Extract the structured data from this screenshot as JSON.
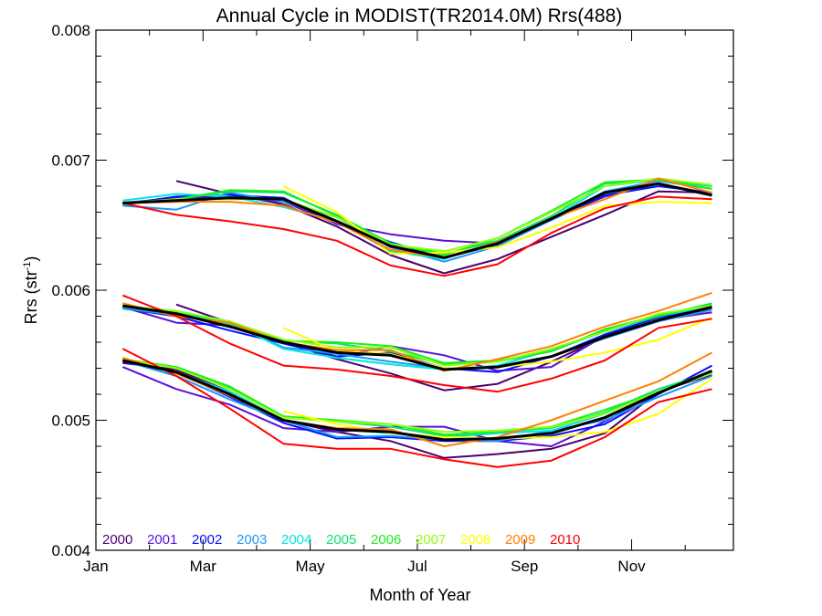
{
  "chart_data": {
    "type": "line",
    "title": "Annual Cycle in MODIST(TR2014.0M) Rrs(488)",
    "xlabel": "Month of Year",
    "ylabel_main": "Rrs (str",
    "ylabel_sup": "-1",
    "ylabel_close": ")",
    "xlim": [
      1,
      12.9
    ],
    "ylim": [
      0.004,
      0.008
    ],
    "x_ticks": [
      {
        "value": 1,
        "label": "Jan"
      },
      {
        "value": 3,
        "label": "Mar"
      },
      {
        "value": 5,
        "label": "May"
      },
      {
        "value": 7,
        "label": "Jul"
      },
      {
        "value": 9,
        "label": "Sep"
      },
      {
        "value": 11,
        "label": "Nov"
      }
    ],
    "y_ticks": [
      {
        "value": 0.004,
        "label": "0.004"
      },
      {
        "value": 0.005,
        "label": "0.005"
      },
      {
        "value": 0.006,
        "label": "0.006"
      },
      {
        "value": 0.007,
        "label": "0.007"
      },
      {
        "value": 0.008,
        "label": "0.008"
      }
    ],
    "x_months": [
      1.5,
      2.5,
      3.5,
      4.5,
      5.5,
      6.5,
      7.5,
      8.5,
      9.5,
      10.5,
      11.5,
      12.5
    ],
    "mean_color": "#000000",
    "groups": [
      {
        "series": [
          {
            "name": "2000",
            "color": "#4b0070",
            "values": [
              null,
              0.00684,
              0.00674,
              0.00666,
              0.00649,
              0.00627,
              0.00613,
              0.00624,
              0.00641,
              0.00658,
              0.00676,
              0.00675
            ]
          },
          {
            "name": "2001",
            "color": "#5a10d8",
            "values": [
              0.00667,
              0.00671,
              0.00672,
              0.00668,
              0.00651,
              0.00643,
              0.00638,
              0.00636,
              0.00655,
              0.00672,
              0.00682,
              0.00674
            ]
          },
          {
            "name": "2002",
            "color": "#0010ff",
            "values": [
              0.00666,
              0.00672,
              0.00673,
              0.00671,
              0.00651,
              0.00637,
              0.00625,
              0.00635,
              0.00654,
              0.00673,
              0.0068,
              0.00675
            ]
          },
          {
            "name": "2003",
            "color": "#1a9af0",
            "values": [
              0.00665,
              0.00662,
              0.00675,
              0.00668,
              0.00656,
              0.00633,
              0.00622,
              0.00634,
              0.00654,
              0.00676,
              0.00684,
              0.00678
            ]
          },
          {
            "name": "2004",
            "color": "#00e5e5",
            "values": [
              0.00669,
              0.00674,
              0.00672,
              0.00664,
              0.00653,
              0.0063,
              0.00624,
              0.00638,
              0.00655,
              0.0068,
              0.00685,
              0.00678
            ]
          },
          {
            "name": "2005",
            "color": "#10e070",
            "values": [
              0.00666,
              0.0067,
              0.00676,
              0.00675,
              0.00658,
              0.00636,
              0.00628,
              0.00638,
              0.00657,
              0.00682,
              0.00685,
              0.0068
            ]
          },
          {
            "name": "2006",
            "color": "#18f018",
            "values": [
              0.00666,
              0.0067,
              0.00677,
              0.00676,
              0.00657,
              0.00636,
              0.00627,
              0.0064,
              0.00661,
              0.00683,
              0.00685,
              0.00678
            ]
          },
          {
            "name": "2007",
            "color": "#90ff10",
            "values": [
              0.00667,
              0.0067,
              0.0067,
              0.0067,
              0.00656,
              0.00635,
              0.0063,
              0.0064,
              0.0066,
              0.0068,
              0.00686,
              0.00681
            ]
          },
          {
            "name": "2008",
            "color": "#ffff00",
            "values": [
              null,
              null,
              null,
              0.0068,
              0.0066,
              0.00628,
              0.00629,
              0.00633,
              0.00648,
              0.00665,
              0.00668,
              0.00667
            ]
          },
          {
            "name": "2009",
            "color": "#ff8000",
            "values": [
              0.00667,
              0.00668,
              0.00668,
              0.00665,
              0.00652,
              0.00631,
              0.00625,
              0.00637,
              0.00655,
              0.0067,
              0.00686,
              0.00675
            ]
          },
          {
            "name": "2010",
            "color": "#ff0000",
            "values": [
              0.00667,
              0.00658,
              0.00653,
              0.00647,
              0.00638,
              0.00619,
              0.00611,
              0.0062,
              0.00644,
              0.00663,
              0.00672,
              0.0067
            ]
          }
        ],
        "mean": [
          0.00667,
          0.00669,
          0.00671,
          0.0067,
          0.00653,
          0.00634,
          0.00625,
          0.00636,
          0.00655,
          0.00675,
          0.00682,
          0.00673
        ]
      },
      {
        "series": [
          {
            "name": "2000",
            "color": "#4b0070",
            "values": [
              null,
              0.00589,
              0.00575,
              0.0056,
              0.00547,
              0.00536,
              0.00523,
              0.00528,
              0.00545,
              0.00564,
              0.0058,
              0.00585
            ]
          },
          {
            "name": "2001",
            "color": "#5a10d8",
            "values": [
              0.00587,
              0.00575,
              0.00573,
              0.0056,
              0.00549,
              0.00557,
              0.0055,
              0.00538,
              0.00541,
              0.00565,
              0.00577,
              0.00583
            ]
          },
          {
            "name": "2002",
            "color": "#0010ff",
            "values": [
              0.00586,
              0.0058,
              0.00569,
              0.00559,
              0.00549,
              0.00552,
              0.0054,
              0.00537,
              0.00549,
              0.00566,
              0.00579,
              0.00587
            ]
          },
          {
            "name": "2003",
            "color": "#1a9af0",
            "values": [
              0.00586,
              0.00581,
              0.00574,
              0.00556,
              0.00551,
              0.00545,
              0.0054,
              0.00541,
              0.00549,
              0.00563,
              0.00576,
              0.00585
            ]
          },
          {
            "name": "2004",
            "color": "#00e5e5",
            "values": [
              0.00587,
              0.00583,
              0.00575,
              0.00555,
              0.00548,
              0.00543,
              0.00539,
              0.00542,
              0.00554,
              0.00568,
              0.0058,
              0.00588
            ]
          },
          {
            "name": "2005",
            "color": "#10e070",
            "values": [
              0.00587,
              0.00583,
              0.00574,
              0.00561,
              0.00559,
              0.00553,
              0.00543,
              0.00545,
              0.00553,
              0.00569,
              0.0058,
              0.0059
            ]
          },
          {
            "name": "2006",
            "color": "#18f018",
            "values": [
              0.00588,
              0.00584,
              0.00576,
              0.00561,
              0.0056,
              0.00557,
              0.00544,
              0.00546,
              0.00553,
              0.0057,
              0.00581,
              0.00589
            ]
          },
          {
            "name": "2007",
            "color": "#90ff10",
            "values": [
              0.00588,
              0.00584,
              0.00576,
              0.00562,
              0.00556,
              0.00556,
              0.00542,
              0.00545,
              0.00555,
              0.00568,
              0.00582,
              0.00588
            ]
          },
          {
            "name": "2008",
            "color": "#ffff00",
            "values": [
              null,
              null,
              null,
              0.00571,
              0.00553,
              0.00551,
              0.0054,
              0.00541,
              0.00545,
              0.00552,
              0.00562,
              0.00579
            ]
          },
          {
            "name": "2009",
            "color": "#ff8000",
            "values": [
              0.0059,
              0.0058,
              0.00575,
              0.0056,
              0.00554,
              0.00554,
              0.00538,
              0.00547,
              0.00557,
              0.00572,
              0.00584,
              0.00598
            ]
          },
          {
            "name": "2010",
            "color": "#ff0000",
            "values": [
              0.00596,
              0.0058,
              0.00559,
              0.00542,
              0.00539,
              0.00534,
              0.00527,
              0.00522,
              0.00532,
              0.00546,
              0.00571,
              0.00578
            ]
          }
        ],
        "mean": [
          0.00588,
          0.00582,
          0.00572,
          0.0056,
          0.00552,
          0.0055,
          0.00539,
          0.00541,
          0.00549,
          0.00564,
          0.00577,
          0.00587
        ]
      },
      {
        "series": [
          {
            "name": "2000",
            "color": "#4b0070",
            "values": [
              0.00544,
              0.00539,
              0.00522,
              0.005,
              0.00491,
              0.00484,
              0.00471,
              0.00474,
              0.00478,
              0.0049,
              0.00522,
              0.00535
            ]
          },
          {
            "name": "2001",
            "color": "#5a10d8",
            "values": [
              0.00541,
              0.00524,
              0.00512,
              0.00494,
              0.00491,
              0.00495,
              0.00495,
              0.00484,
              0.0048,
              0.00499,
              0.00522,
              0.00537
            ]
          },
          {
            "name": "2002",
            "color": "#0010ff",
            "values": [
              0.00545,
              0.00537,
              0.00518,
              0.00498,
              0.00486,
              0.00487,
              0.00484,
              0.00484,
              0.00488,
              0.00497,
              0.0052,
              0.00542
            ]
          },
          {
            "name": "2003",
            "color": "#1a9af0",
            "values": [
              0.00546,
              0.00534,
              0.00516,
              0.005,
              0.00487,
              0.00488,
              0.00485,
              0.00484,
              0.00492,
              0.005,
              0.00518,
              0.00534
            ]
          },
          {
            "name": "2004",
            "color": "#00e5e5",
            "values": [
              0.00547,
              0.00537,
              0.00522,
              0.005,
              0.00493,
              0.0049,
              0.00487,
              0.0049,
              0.00492,
              0.00505,
              0.00522,
              0.00537
            ]
          },
          {
            "name": "2005",
            "color": "#10e070",
            "values": [
              0.00547,
              0.0054,
              0.00525,
              0.00503,
              0.00499,
              0.00495,
              0.00488,
              0.00491,
              0.00494,
              0.00506,
              0.00524,
              0.00537
            ]
          },
          {
            "name": "2006",
            "color": "#18f018",
            "values": [
              0.00547,
              0.00541,
              0.00526,
              0.00503,
              0.005,
              0.00497,
              0.00489,
              0.00491,
              0.00495,
              0.00508,
              0.00522,
              0.00538
            ]
          },
          {
            "name": "2007",
            "color": "#90ff10",
            "values": [
              0.00547,
              0.0054,
              0.00524,
              0.00502,
              0.00499,
              0.00497,
              0.00491,
              0.00492,
              0.00495,
              0.00505,
              0.00522,
              0.00536
            ]
          },
          {
            "name": "2008",
            "color": "#ffff00",
            "values": [
              null,
              null,
              null,
              0.00507,
              0.00497,
              0.0049,
              0.00487,
              0.00486,
              0.00487,
              0.00491,
              0.00505,
              0.00532
            ]
          },
          {
            "name": "2009",
            "color": "#ff8000",
            "values": [
              0.00548,
              0.00536,
              0.00519,
              0.005,
              0.00494,
              0.00493,
              0.0048,
              0.00487,
              0.005,
              0.00515,
              0.0053,
              0.00552
            ]
          },
          {
            "name": "2010",
            "color": "#ff0000",
            "values": [
              0.00555,
              0.00534,
              0.00509,
              0.00482,
              0.00478,
              0.00478,
              0.0047,
              0.00464,
              0.00469,
              0.00487,
              0.00514,
              0.00524
            ]
          }
        ],
        "mean": [
          0.00546,
          0.00537,
          0.0052,
          0.005,
          0.00493,
          0.00491,
          0.00485,
          0.00486,
          0.0049,
          0.00502,
          0.00521,
          0.00538
        ]
      }
    ],
    "legend": [
      {
        "label": "2000",
        "color": "#4b0070"
      },
      {
        "label": "2001",
        "color": "#5a10d8"
      },
      {
        "label": "2002",
        "color": "#0010ff"
      },
      {
        "label": "2003",
        "color": "#1a9af0"
      },
      {
        "label": "2004",
        "color": "#00e5e5"
      },
      {
        "label": "2005",
        "color": "#10e070"
      },
      {
        "label": "2006",
        "color": "#18f018"
      },
      {
        "label": "2007",
        "color": "#90ff10"
      },
      {
        "label": "2008",
        "color": "#ffff00"
      },
      {
        "label": "2009",
        "color": "#ff8000"
      },
      {
        "label": "2010",
        "color": "#ff0000"
      }
    ],
    "legend_position": "bottom-left",
    "grid": false
  }
}
